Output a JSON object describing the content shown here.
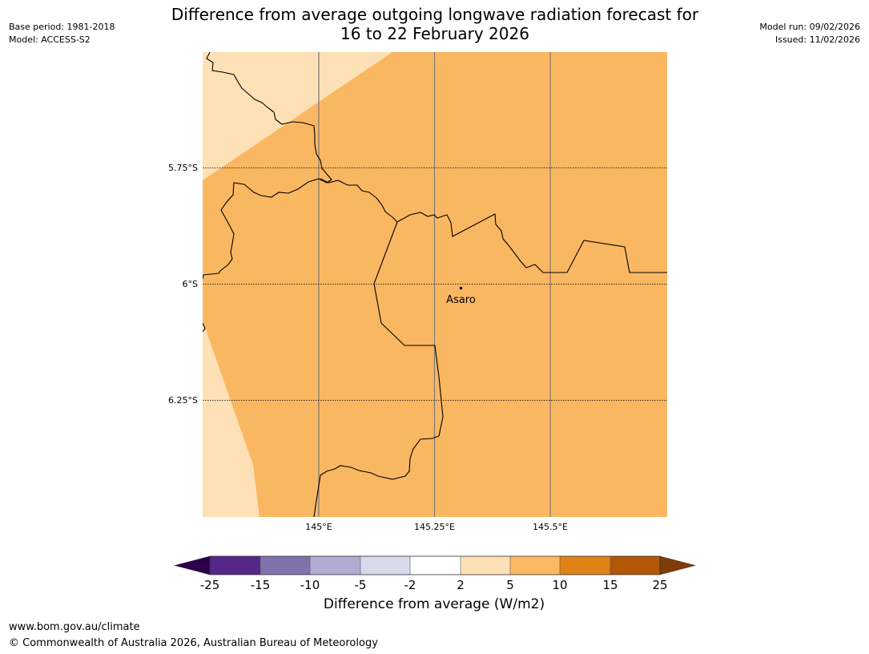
{
  "header": {
    "base_period": "Base period: 1981-2018",
    "model": "Model: ACCESS-S2",
    "model_run": "Model run: 09/02/2026",
    "issued": "Issued: 11/02/2026",
    "title_line1": "Difference from average outgoing longwave radiation forecast for",
    "title_line2": "16 to 22 February 2026"
  },
  "map": {
    "lat_labels": [
      "5.75°S",
      "6°S",
      "6.25°S"
    ],
    "lon_labels": [
      "145°E",
      "145.25°E",
      "145.5°E"
    ],
    "place": {
      "name": "Asaro",
      "lat": -5.99,
      "lon": 145.305
    },
    "category_colors": {
      "2-5": "#fde0b6",
      "5-10": "#fab761"
    }
  },
  "colorbar": {
    "label": "Difference from average (W/m2)",
    "ticks": [
      "-25",
      "-15",
      "-10",
      "-5",
      "-2",
      "2",
      "5",
      "10",
      "15",
      "25"
    ],
    "colors": [
      "#542788",
      "#8073ac",
      "#b2abd2",
      "#d8daeb",
      "#ffffff",
      "#fee0b6",
      "#fdb863",
      "#e08214",
      "#b35806"
    ],
    "under_color": "#2d004b",
    "over_color": "#7f3b08"
  },
  "footer": {
    "url": "www.bom.gov.au/climate",
    "copyright": "© Commonwealth of Australia 2026, Australian Bureau of Meteorology"
  }
}
